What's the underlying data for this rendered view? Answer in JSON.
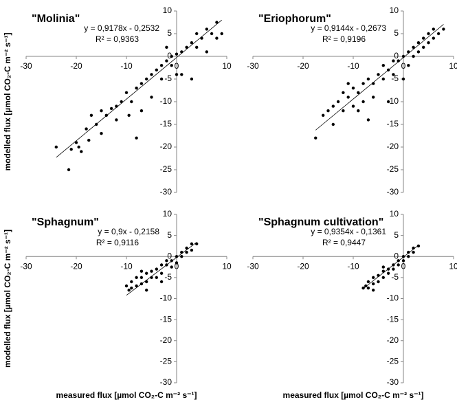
{
  "chart_data": [
    {
      "type": "scatter",
      "title": "\"Molinia\"",
      "ylabel": "modelled flux [µmol CO₂-C m⁻² s⁻¹]",
      "color": "#000000",
      "trendline": {
        "equation": "y = 0,9178x - 0,2532",
        "r2": "R² = 0,9363",
        "slope": 0.9178,
        "intercept": -0.2532
      },
      "xlim": [
        -30,
        10
      ],
      "ylim": [
        -30,
        10
      ],
      "xticks": [
        -30,
        -20,
        -10,
        0,
        10
      ],
      "yticks": [
        10,
        5,
        0,
        -5,
        -10,
        -15,
        -20,
        -25,
        -30
      ],
      "x": [
        -24,
        -21.5,
        -21,
        -20,
        -19.5,
        -19,
        -18,
        -17.5,
        -17,
        -16,
        -15,
        -15,
        -14,
        -13,
        -12,
        -12,
        -11,
        -10,
        -9.5,
        -9,
        -8,
        -7,
        -7,
        -6,
        -5,
        -5,
        -4,
        -3,
        -3,
        -2,
        -1,
        -1,
        0,
        0,
        1,
        1,
        2,
        3,
        4,
        4,
        5,
        6,
        6,
        7,
        8,
        8,
        9,
        3,
        -2,
        -8
      ],
      "y": [
        -20,
        -25,
        -20.5,
        -19,
        -20,
        -21,
        -16,
        -18.5,
        -13,
        -15,
        -17,
        -12,
        -13,
        -11.5,
        -14,
        -11,
        -10,
        -8,
        -13,
        -10,
        -7,
        -12,
        -6,
        -5,
        -9,
        -4,
        -3,
        -5,
        -2,
        -1,
        -2,
        0,
        -4,
        0.5,
        1,
        -4,
        2,
        3,
        2,
        5,
        4,
        6,
        1,
        5,
        7.5,
        4,
        5,
        -5,
        2,
        -18
      ]
    },
    {
      "type": "scatter",
      "title": "\"Eriophorum\"",
      "color": "#000000",
      "trendline": {
        "equation": "y = 0,9144x - 0,2673",
        "r2": "R² = 0,9196",
        "slope": 0.9144,
        "intercept": -0.2673
      },
      "xlim": [
        -30,
        10
      ],
      "ylim": [
        -30,
        10
      ],
      "xticks": [
        -30,
        -20,
        -10,
        0,
        10
      ],
      "yticks": [
        10,
        5,
        0,
        -5,
        -10,
        -15,
        -20,
        -25,
        -30
      ],
      "x": [
        -17.5,
        -16,
        -15,
        -14,
        -14,
        -13,
        -12,
        -12,
        -11,
        -10,
        -10,
        -9,
        -8,
        -8,
        -7,
        -6,
        -6,
        -5,
        -4,
        -4,
        -3,
        -2,
        -2,
        -1,
        0,
        0,
        1,
        1,
        2,
        2,
        3,
        3,
        4,
        4,
        5,
        5,
        6,
        6,
        7,
        8,
        -7,
        -3,
        -9,
        -11
      ],
      "y": [
        -18,
        -13,
        -12,
        -11,
        -15,
        -10,
        -8,
        -12,
        -9,
        -7,
        -11,
        -8,
        -6,
        -10,
        -5,
        -6,
        -9,
        -4,
        -5,
        -2,
        -3,
        -1,
        -4,
        -1,
        0,
        -5,
        1,
        -2,
        2,
        0,
        3,
        1,
        4,
        2,
        5,
        3,
        6,
        4,
        5,
        6,
        -14,
        -10,
        -12,
        -6
      ]
    },
    {
      "type": "scatter",
      "title": "\"Sphagnum\"",
      "ylabel": "modelled flux [µmol CO₂-C m⁻² s⁻¹]",
      "xlabel": "measured flux [µmol CO₂-C m⁻² s⁻¹]",
      "color": "#000000",
      "trendline": {
        "equation": "y = 0,9x - 0,2158",
        "r2": "R² = 0,9116",
        "slope": 0.9,
        "intercept": -0.2158
      },
      "xlim": [
        -30,
        10
      ],
      "ylim": [
        -30,
        10
      ],
      "xticks": [
        -30,
        -20,
        -10,
        0,
        10
      ],
      "yticks": [
        10,
        5,
        0,
        -5,
        -10,
        -15,
        -20,
        -25,
        -30
      ],
      "x": [
        -10,
        -9.5,
        -9,
        -9,
        -8,
        -8,
        -7,
        -7,
        -6,
        -6,
        -5,
        -5,
        -4,
        -4,
        -3,
        -3,
        -2,
        -2,
        -1,
        -1,
        0,
        0,
        1,
        1,
        2,
        2,
        3,
        3,
        4,
        -6,
        -3,
        -7
      ],
      "y": [
        -7,
        -8,
        -6,
        -7.5,
        -5,
        -7,
        -5,
        -6.5,
        -4,
        -6,
        -5,
        -3.5,
        -3,
        -5,
        -2,
        -4,
        -2,
        -1,
        -1,
        -2.5,
        0,
        -1.5,
        1,
        0,
        2,
        1,
        3,
        1.5,
        3,
        -8,
        -6,
        -3.5
      ]
    },
    {
      "type": "scatter",
      "title": "\"Sphagnum cultivation\"",
      "xlabel": "measured flux [µmol CO₂-C m⁻² s⁻¹]",
      "color": "#000000",
      "trendline": {
        "equation": "y = 0,9354x - 0,1361",
        "r2": "R² = 0,9447",
        "slope": 0.9354,
        "intercept": -0.1361
      },
      "xlim": [
        -30,
        10
      ],
      "ylim": [
        -30,
        10
      ],
      "xticks": [
        -30,
        -20,
        -10,
        0,
        10
      ],
      "yticks": [
        10,
        5,
        0,
        -5,
        -10,
        -15,
        -20,
        -25,
        -30
      ],
      "x": [
        -8,
        -7.5,
        -7,
        -7,
        -6,
        -6,
        -5,
        -5,
        -4,
        -4,
        -3,
        -3,
        -2,
        -2,
        -1,
        -1,
        0,
        0,
        1,
        1,
        2,
        2,
        3,
        -6,
        -4
      ],
      "y": [
        -7.5,
        -7,
        -6,
        -7.5,
        -5,
        -6.5,
        -4.5,
        -6,
        -3.5,
        -5,
        -3,
        -4,
        -2,
        -3,
        -1,
        -2,
        0,
        -1,
        1,
        0,
        2,
        1,
        2.5,
        -8,
        -2.5
      ]
    }
  ]
}
